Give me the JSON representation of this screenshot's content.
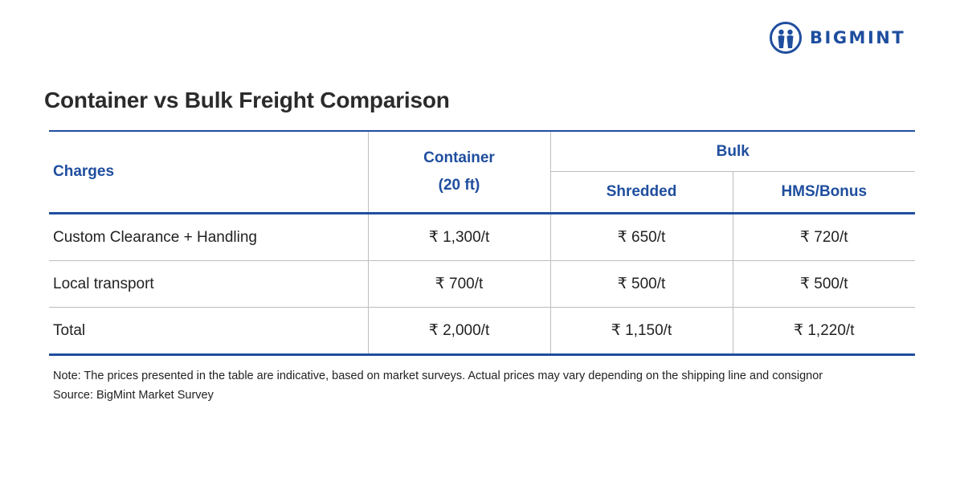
{
  "brand": {
    "logo_icon": "bigmint-people-icon",
    "name": "BIGMINT",
    "color": "#1f4e9e"
  },
  "title": "Container vs Bulk Freight Comparison",
  "table": {
    "headers": {
      "charges": "Charges",
      "container_line1": "Container",
      "container_line2": "(20 ft)",
      "bulk": "Bulk",
      "shredded": "Shredded",
      "hms_bonus": "HMS/Bonus"
    },
    "rows": [
      {
        "label": "Custom Clearance + Handling",
        "container": "₹ 1,300/t",
        "shredded": "₹ 650/t",
        "hms_bonus": "₹ 720/t"
      },
      {
        "label": "Local transport",
        "container": "₹ 700/t",
        "shredded": "₹ 500/t",
        "hms_bonus": "₹ 500/t"
      },
      {
        "label": "Total",
        "container": "₹ 2,000/t",
        "shredded": "₹ 1,150/t",
        "hms_bonus": "₹ 1,220/t"
      }
    ]
  },
  "note": "Note: The prices presented in the table are indicative, based on market surveys. Actual prices may vary depending on the shipping line and consignor",
  "source": "Source: BigMint Market Survey"
}
